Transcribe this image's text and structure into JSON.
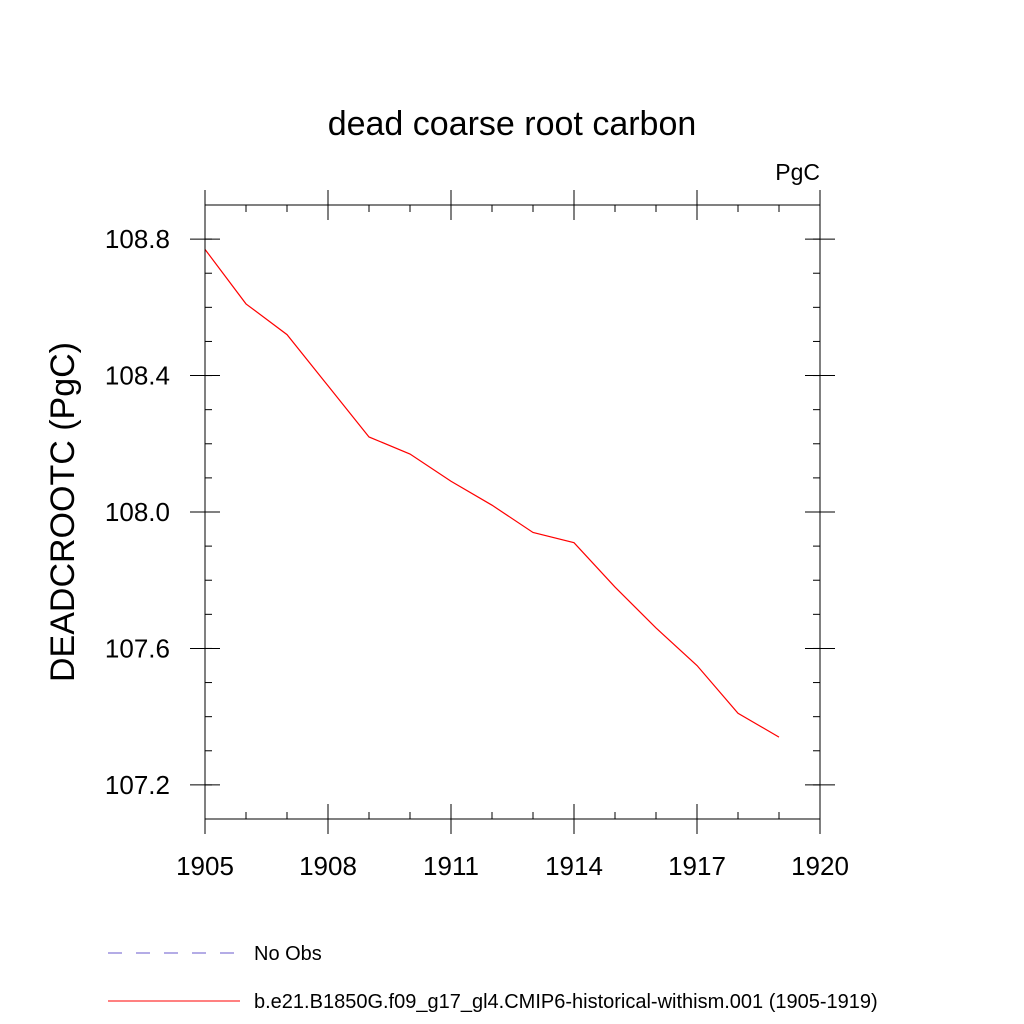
{
  "chart_data": {
    "type": "line",
    "title": "dead coarse root carbon",
    "units": "PgC",
    "xlabel": "",
    "ylabel": "DEADCROOTC  (PgC)",
    "xlim": [
      1905,
      1920
    ],
    "ylim": [
      107.1,
      108.9
    ],
    "x_ticks": [
      1905,
      1908,
      1911,
      1914,
      1917,
      1920
    ],
    "x_tick_labels": [
      "1905",
      "1908",
      "1911",
      "1914",
      "1917",
      "1920"
    ],
    "x_minor_ticks": [
      1905,
      1906,
      1907,
      1908,
      1909,
      1910,
      1911,
      1912,
      1913,
      1914,
      1915,
      1916,
      1917,
      1918,
      1919,
      1920
    ],
    "y_ticks": [
      107.2,
      107.6,
      108.0,
      108.4,
      108.8
    ],
    "y_tick_labels": [
      "107.2",
      "107.6",
      "108.0",
      "108.4",
      "108.8"
    ],
    "y_minor_ticks": [
      107.1,
      107.2,
      107.3,
      107.4,
      107.5,
      107.6,
      107.7,
      107.8,
      107.9,
      108.0,
      108.1,
      108.2,
      108.3,
      108.4,
      108.5,
      108.6,
      108.7,
      108.8,
      108.9
    ],
    "grid": false,
    "series": [
      {
        "name": "b.e21.B1850G.f09_g17_gl4.CMIP6-historical-withism.001 (1905-1919)",
        "color": "#ff0000",
        "x": [
          1905,
          1906,
          1907,
          1908,
          1909,
          1910,
          1911,
          1912,
          1913,
          1914,
          1915,
          1916,
          1917,
          1918,
          1919
        ],
        "y": [
          108.77,
          108.61,
          108.52,
          108.37,
          108.22,
          108.17,
          108.09,
          108.02,
          107.94,
          107.91,
          107.78,
          107.66,
          107.55,
          107.41,
          107.34
        ]
      }
    ],
    "legend": {
      "placement": "bottom-left",
      "entries": [
        {
          "label": "No Obs",
          "color": "#6a5acd",
          "dashed": true
        },
        {
          "label": "b.e21.B1850G.f09_g17_gl4.CMIP6-historical-withism.001 (1905-1919)",
          "color": "#ff0000",
          "dashed": false
        }
      ]
    }
  }
}
